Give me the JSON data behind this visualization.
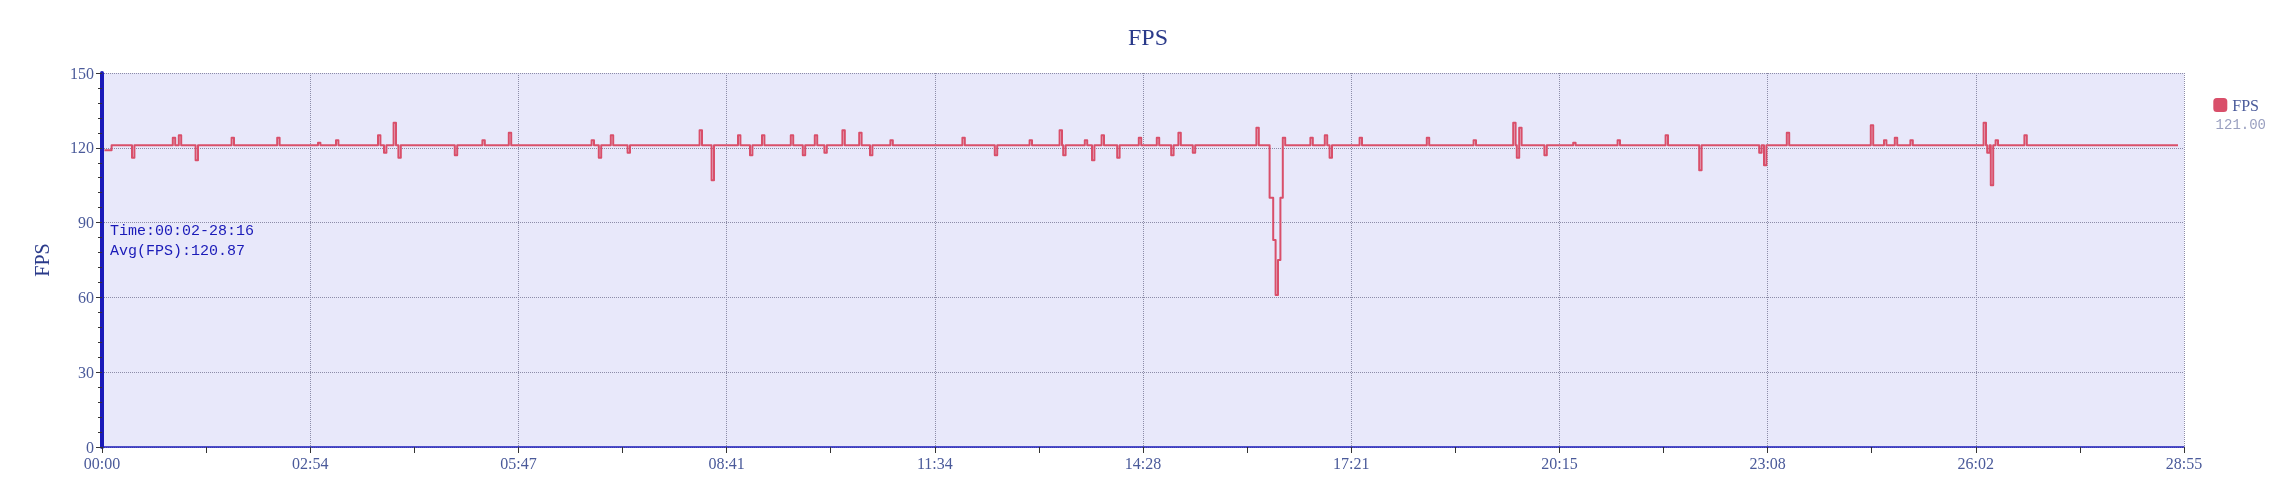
{
  "chart_data": {
    "type": "step",
    "title": "FPS",
    "ylabel": "FPS",
    "xlim": [
      0,
      1735
    ],
    "xticks": [
      {
        "value": 0,
        "label": "00:00"
      },
      {
        "value": 173.5,
        "label": "02:54"
      },
      {
        "value": 347,
        "label": "05:47"
      },
      {
        "value": 520.5,
        "label": "08:41"
      },
      {
        "value": 694,
        "label": "11:34"
      },
      {
        "value": 867.5,
        "label": "14:28"
      },
      {
        "value": 1041,
        "label": "17:21"
      },
      {
        "value": 1214.5,
        "label": "20:15"
      },
      {
        "value": 1388,
        "label": "23:08"
      },
      {
        "value": 1561.5,
        "label": "26:02"
      },
      {
        "value": 1735,
        "label": "28:55"
      }
    ],
    "ylim": [
      0,
      150
    ],
    "yticks": [
      0,
      30,
      60,
      90,
      120,
      150
    ],
    "grid": true,
    "legend": "top right",
    "marker": "none",
    "line_style": "solid",
    "annotations": [
      "Time:00:02-28:16",
      "Avg(FPS):120.87",
      "121.00"
    ],
    "series": [
      {
        "name": "FPS",
        "color": "#d94f6a",
        "x": [
          2,
          8,
          25,
          27,
          59,
          61,
          64,
          66,
          78,
          80,
          108,
          110,
          146,
          148,
          180,
          182,
          195,
          197,
          230,
          232,
          235,
          237,
          243,
          245,
          247,
          249,
          294,
          296,
          317,
          319,
          339,
          341,
          408,
          410,
          414,
          416,
          424,
          426,
          438,
          440,
          498,
          500,
          508,
          510,
          530,
          532,
          540,
          542,
          550,
          552,
          574,
          576,
          584,
          586,
          594,
          596,
          602,
          604,
          617,
          619,
          631,
          633,
          640,
          642,
          657,
          659,
          717,
          719,
          744,
          746,
          773,
          775,
          798,
          800,
          801,
          803,
          819,
          821,
          825,
          827,
          833,
          835,
          846,
          848,
          864,
          866,
          879,
          881,
          891,
          893,
          897,
          899,
          909,
          911,
          962,
          964,
          973,
          976,
          978,
          980,
          982,
          984,
          986,
          1007,
          1009,
          1019,
          1021,
          1023,
          1025,
          1048,
          1050,
          1062,
          1104,
          1106,
          1143,
          1145,
          1176,
          1178,
          1179,
          1181,
          1183,
          1202,
          1204,
          1226,
          1228,
          1263,
          1265,
          1303,
          1305,
          1331,
          1333,
          1381,
          1383,
          1385,
          1387,
          1404,
          1406,
          1474,
          1476,
          1485,
          1487,
          1494,
          1496,
          1507,
          1509,
          1568,
          1570,
          1571,
          1573,
          1574,
          1576,
          1578,
          1580,
          1602,
          1604,
          1730
        ],
        "values": [
          119,
          121,
          116,
          121,
          124,
          121,
          125,
          121,
          115,
          121,
          124,
          121,
          124,
          121,
          122,
          121,
          123,
          121,
          125,
          121,
          118,
          121,
          130,
          121,
          116,
          121,
          117,
          121,
          123,
          121,
          126,
          121,
          123,
          121,
          116,
          121,
          125,
          121,
          118,
          121,
          127,
          121,
          107,
          121,
          125,
          121,
          117,
          121,
          125,
          121,
          125,
          121,
          117,
          121,
          125,
          121,
          118,
          121,
          127,
          121,
          126,
          121,
          117,
          121,
          123,
          121,
          124,
          121,
          117,
          121,
          123,
          121,
          127,
          121,
          117,
          121,
          123,
          121,
          115,
          121,
          125,
          121,
          116,
          121,
          124,
          121,
          124,
          121,
          117,
          121,
          126,
          121,
          118,
          121,
          128,
          121,
          100,
          83,
          61,
          75,
          100,
          124,
          121,
          124,
          121,
          125,
          121,
          116,
          121,
          124,
          121,
          121,
          124,
          121,
          123,
          121,
          130,
          121,
          116,
          128,
          121,
          117,
          121,
          122,
          121,
          123,
          121,
          125,
          121,
          111,
          121,
          118,
          121,
          113,
          121,
          126,
          121,
          129,
          121,
          123,
          121,
          124,
          121,
          123,
          121,
          130,
          121,
          118,
          121,
          105,
          121,
          123,
          121,
          125,
          121,
          121
        ]
      }
    ]
  }
}
